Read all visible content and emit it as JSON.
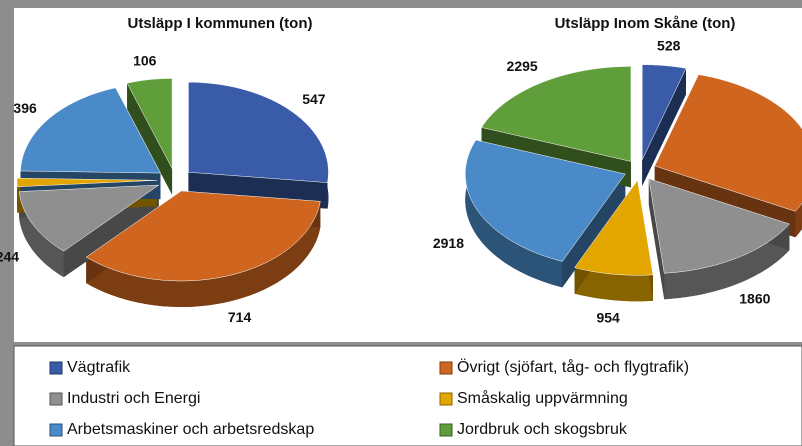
{
  "chart_data": [
    {
      "type": "pie",
      "title": "Utsläpp I kommunen (ton)",
      "categories": [
        "Vägtrafik",
        "Övrigt (sjöfart, tåg- och flygtrafik)",
        "Industri och Energi",
        "Småskalig uppvärmning",
        "Arbetsmaskiner och arbetsredskap",
        "Jordbruk och skogsbruk"
      ],
      "values": [
        547,
        714,
        244,
        31,
        396,
        106
      ],
      "colors": [
        "#3a5ba8",
        "#d0651f",
        "#8f8f8f",
        "#e3a600",
        "#4a8ac8",
        "#5f9e3a"
      ]
    },
    {
      "type": "pie",
      "title": "Utsläpp Inom Skåne (ton)",
      "categories": [
        "Vägtrafik",
        "Övrigt (sjöfart, tåg- och flygtrafik)",
        "Industri och Energi",
        "Småskalig uppvärmning",
        "Arbetsmaskiner och arbetsredskap",
        "Jordbruk och skogsbruk"
      ],
      "values": [
        528,
        3411,
        1860,
        954,
        2918,
        2295
      ],
      "colors": [
        "#3a5ba8",
        "#d0651f",
        "#8f8f8f",
        "#e3a600",
        "#4a8ac8",
        "#5f9e3a"
      ]
    }
  ]
}
